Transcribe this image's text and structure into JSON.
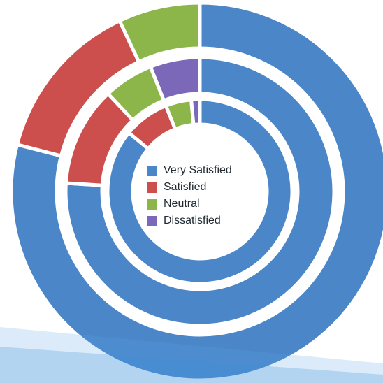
{
  "chart_data": {
    "type": "pie",
    "style": "multi-ring donut",
    "colors": {
      "Very Satisfied": "#4a86c8",
      "Satisfied": "#cc4f4d",
      "Neutral": "#8cb54a",
      "Dissatisfied": "#7b68b8"
    },
    "legend": {
      "placement": "center",
      "entries": [
        "Very Satisfied",
        "Satisfied",
        "Neutral",
        "Dissatisfied"
      ]
    },
    "rings": [
      {
        "ring": "outer",
        "slices": [
          {
            "label": "Very Satisfied",
            "value": 79
          },
          {
            "label": "Satisfied",
            "value": 14
          },
          {
            "label": "Neutral",
            "value": 7
          },
          {
            "label": "Dissatisfied",
            "value": 0
          }
        ]
      },
      {
        "ring": "middle",
        "slices": [
          {
            "label": "Very Satisfied",
            "value": 76
          },
          {
            "label": "Satisfied",
            "value": 12
          },
          {
            "label": "Neutral",
            "value": 6
          },
          {
            "label": "Dissatisfied",
            "value": 6
          }
        ]
      },
      {
        "ring": "inner",
        "slices": [
          {
            "label": "Very Satisfied",
            "value": 86
          },
          {
            "label": "Satisfied",
            "value": 8
          },
          {
            "label": "Neutral",
            "value": 4.5
          },
          {
            "label": "Dissatisfied",
            "value": 1.5
          }
        ]
      }
    ]
  }
}
